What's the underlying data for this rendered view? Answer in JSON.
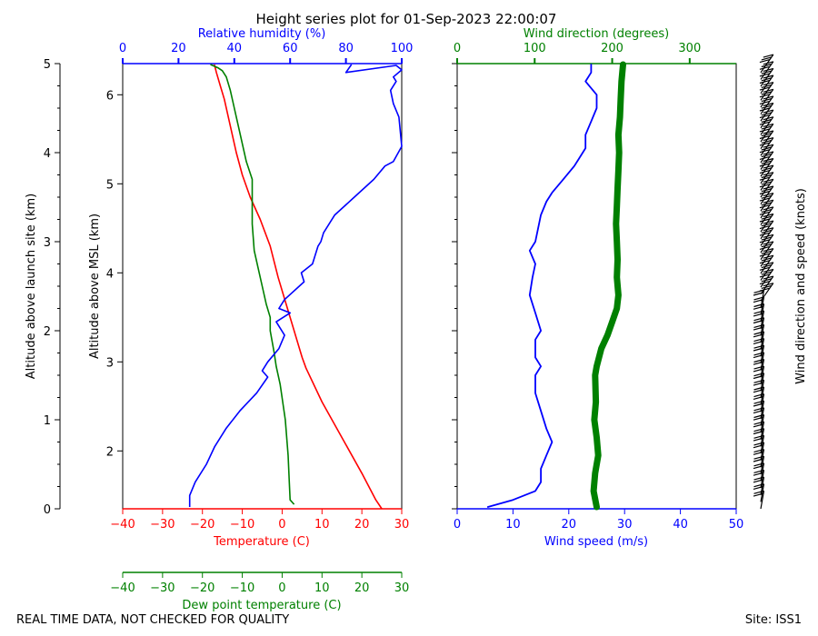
{
  "colors": {
    "temp": "#ff0000",
    "dew": "#008000",
    "rh": "#0000ff",
    "wspd": "#0000ff",
    "wdir": "#008000",
    "barb": "#000000"
  },
  "title": "Height series plot for 01-Sep-2023 22:00:07",
  "footer_left": "REAL TIME DATA, NOT CHECKED FOR QUALITY",
  "footer_right": "Site: ISS1",
  "chart_data": [
    {
      "type": "line",
      "name": "thermo_panel",
      "ylabel_launch": "Altitude above launch site (km)",
      "ylabel_msl": "Altitude above MSL (km)",
      "ylim_launch_km": [
        0,
        5
      ],
      "yticks_launch": [
        "0",
        "1",
        "2",
        "3",
        "4",
        "5"
      ],
      "yticks_msl": [
        "2",
        "3",
        "4",
        "5",
        "6"
      ],
      "msl_offset_km": 1.35,
      "x_bottom": {
        "label": "Temperature (C)",
        "range": [
          -40,
          30
        ],
        "ticks": [
          "-40",
          "-30",
          "-20",
          "-10",
          "0",
          "10",
          "20",
          "30"
        ]
      },
      "x_top": {
        "label": "Relative humidity (%)",
        "range": [
          0,
          100
        ],
        "ticks": [
          "0",
          "20",
          "40",
          "60",
          "80",
          "100"
        ]
      },
      "x_extra": {
        "label": "Dew point temperature (C)",
        "range": [
          -40,
          30
        ],
        "ticks": [
          "-40",
          "-30",
          "-20",
          "-10",
          "0",
          "10",
          "20",
          "30"
        ]
      },
      "series": [
        {
          "name": "Temperature (C)",
          "color_key": "temp",
          "points": [
            [
              25,
              0
            ],
            [
              23.5,
              0.1
            ],
            [
              20,
              0.4
            ],
            [
              15,
              0.8
            ],
            [
              10,
              1.2
            ],
            [
              6,
              1.58
            ],
            [
              5,
              1.7
            ],
            [
              3,
              2
            ],
            [
              1,
              2.3
            ],
            [
              -1,
              2.6
            ],
            [
              -3,
              2.95
            ],
            [
              -5.5,
              3.25
            ],
            [
              -8,
              3.5
            ],
            [
              -10,
              3.75
            ],
            [
              -11.5,
              4.0
            ],
            [
              -12.5,
              4.2
            ],
            [
              -13.5,
              4.4
            ],
            [
              -14.5,
              4.6
            ],
            [
              -15.5,
              4.75
            ],
            [
              -16.5,
              4.9
            ],
            [
              -17,
              4.99
            ]
          ]
        },
        {
          "name": "Dew point (C)",
          "color_key": "dew",
          "points": [
            [
              3,
              0.05
            ],
            [
              2,
              0.1
            ],
            [
              1.8,
              0.3
            ],
            [
              1.5,
              0.6
            ],
            [
              0.8,
              1.0
            ],
            [
              -0.5,
              1.4
            ],
            [
              -1.5,
              1.6
            ],
            [
              -2,
              1.75
            ],
            [
              -3,
              2
            ],
            [
              -3,
              2.15
            ],
            [
              -4,
              2.3
            ],
            [
              -5,
              2.5
            ],
            [
              -6,
              2.7
            ],
            [
              -7,
              2.9
            ],
            [
              -7.5,
              3.2
            ],
            [
              -7.5,
              3.5
            ],
            [
              -7.5,
              3.7
            ],
            [
              -9,
              3.9
            ],
            [
              -10,
              4.1
            ],
            [
              -11,
              4.3
            ],
            [
              -12,
              4.5
            ],
            [
              -13,
              4.7
            ],
            [
              -14,
              4.85
            ],
            [
              -15,
              4.92
            ],
            [
              -16,
              4.95
            ],
            [
              -17,
              4.97
            ],
            [
              -18,
              4.99
            ]
          ]
        },
        {
          "name": "Relative humidity (%)",
          "color_key": "rh",
          "points": [
            [
              24,
              0.02
            ],
            [
              24,
              0.15
            ],
            [
              26,
              0.3
            ],
            [
              30,
              0.5
            ],
            [
              33,
              0.7
            ],
            [
              37,
              0.9
            ],
            [
              42,
              1.1
            ],
            [
              48,
              1.3
            ],
            [
              52,
              1.48
            ],
            [
              50,
              1.55
            ],
            [
              52,
              1.65
            ],
            [
              56,
              1.8
            ],
            [
              58,
              1.95
            ],
            [
              55,
              2.1
            ],
            [
              60,
              2.2
            ],
            [
              56,
              2.25
            ],
            [
              58,
              2.35
            ],
            [
              65,
              2.55
            ],
            [
              64,
              2.65
            ],
            [
              68,
              2.75
            ],
            [
              70,
              2.95
            ],
            [
              71,
              3.0
            ],
            [
              72,
              3.1
            ],
            [
              76,
              3.3
            ],
            [
              83,
              3.5
            ],
            [
              90,
              3.7
            ],
            [
              94,
              3.85
            ],
            [
              97,
              3.9
            ],
            [
              100,
              4.07
            ],
            [
              99,
              4.4
            ],
            [
              97,
              4.55
            ],
            [
              96,
              4.7
            ],
            [
              98,
              4.8
            ],
            [
              97,
              4.85
            ],
            [
              100,
              4.93
            ],
            [
              98,
              4.98
            ],
            [
              80,
              4.9
            ],
            [
              82,
              4.99
            ]
          ]
        }
      ]
    },
    {
      "type": "line",
      "name": "wind_panel",
      "x_bottom": {
        "label": "Wind speed (m/s)",
        "range": [
          0,
          50
        ],
        "ticks": [
          "0",
          "10",
          "20",
          "30",
          "40",
          "50"
        ]
      },
      "x_top": {
        "label": "Wind direction (degrees)",
        "range": [
          0,
          360
        ],
        "ticks": [
          "0",
          "100",
          "200",
          "300"
        ]
      },
      "ylim_launch_km": [
        0,
        5
      ],
      "series": [
        {
          "name": "Wind speed (m/s)",
          "color_key": "wspd",
          "points": [
            [
              5.5,
              0.02
            ],
            [
              10,
              0.1
            ],
            [
              12,
              0.15
            ],
            [
              14,
              0.2
            ],
            [
              15,
              0.3
            ],
            [
              15,
              0.45
            ],
            [
              16,
              0.6
            ],
            [
              17,
              0.75
            ],
            [
              16,
              0.9
            ],
            [
              15,
              1.1
            ],
            [
              14,
              1.3
            ],
            [
              14,
              1.5
            ],
            [
              15,
              1.6
            ],
            [
              14,
              1.7
            ],
            [
              14,
              1.9
            ],
            [
              15,
              2.0
            ],
            [
              14,
              2.2
            ],
            [
              13,
              2.4
            ],
            [
              13.5,
              2.6
            ],
            [
              14,
              2.75
            ],
            [
              13,
              2.9
            ],
            [
              14,
              3.0
            ],
            [
              15,
              3.3
            ],
            [
              16,
              3.45
            ],
            [
              17,
              3.55
            ],
            [
              19,
              3.7
            ],
            [
              21,
              3.85
            ],
            [
              22,
              3.95
            ],
            [
              23,
              4.05
            ],
            [
              23,
              4.2
            ],
            [
              24,
              4.35
            ],
            [
              25,
              4.5
            ],
            [
              25,
              4.65
            ],
            [
              23,
              4.8
            ],
            [
              24,
              4.9
            ],
            [
              24,
              4.99
            ]
          ]
        },
        {
          "name": "Wind direction (deg)",
          "color_key": "wdir",
          "points": [
            [
              180,
              0.02
            ],
            [
              176,
              0.2
            ],
            [
              178,
              0.4
            ],
            [
              182,
              0.6
            ],
            [
              180,
              0.8
            ],
            [
              177,
              1.0
            ],
            [
              179,
              1.2
            ],
            [
              178,
              1.5
            ],
            [
              180,
              1.6
            ],
            [
              186,
              1.8
            ],
            [
              194,
              1.95
            ],
            [
              200,
              2.1
            ],
            [
              206,
              2.25
            ],
            [
              208,
              2.4
            ],
            [
              206,
              2.6
            ],
            [
              207,
              2.8
            ],
            [
              206,
              3.0
            ],
            [
              205,
              3.2
            ],
            [
              206,
              3.4
            ],
            [
              207,
              3.6
            ],
            [
              208,
              3.8
            ],
            [
              209,
              4.0
            ],
            [
              208,
              4.2
            ],
            [
              210,
              4.4
            ],
            [
              211,
              4.6
            ],
            [
              212,
              4.8
            ],
            [
              214,
              4.99
            ]
          ]
        }
      ],
      "barb_label": "Wind direction and speed (knots)",
      "barbs": {
        "count": 64,
        "from_km": 0.0,
        "to_km": 4.9
      }
    }
  ]
}
